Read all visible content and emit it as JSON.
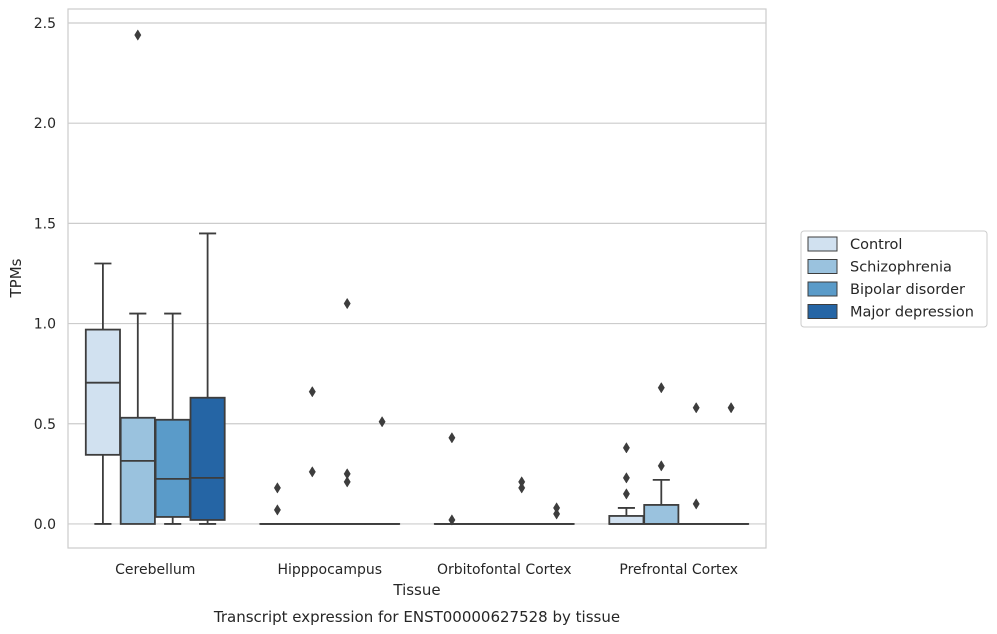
{
  "chart_data": {
    "type": "boxplot",
    "title": "Transcript expression for ENST00000627528 by tissue",
    "xlabel": "Tissue",
    "ylabel": "TPMs",
    "ylim": [
      -0.12,
      2.57
    ],
    "yticks": [
      "0.0",
      "0.5",
      "1.0",
      "1.5",
      "2.0",
      "2.5"
    ],
    "ytick_values": [
      0,
      0.5,
      1.0,
      1.5,
      2.0,
      2.5
    ],
    "grid": true,
    "legend_position": "right",
    "categories": [
      "Cerebellum",
      "Hipppocampus",
      "Orbitofontal Cortex",
      "Prefrontal Cortex"
    ],
    "series": [
      {
        "name": "Control",
        "color": "#d1e1f0",
        "boxes": [
          {
            "q1": 0.345,
            "median": 0.705,
            "q3": 0.97,
            "whislo": 0.0,
            "whishi": 1.3,
            "fliers": []
          },
          {
            "q1": 0.0,
            "median": 0.0,
            "q3": 0.0,
            "whislo": 0.0,
            "whishi": 0.0,
            "fliers": [
              0.07,
              0.18
            ]
          },
          {
            "q1": 0.0,
            "median": 0.0,
            "q3": 0.0,
            "whislo": 0.0,
            "whishi": 0.0,
            "fliers": [
              0.02,
              0.43
            ]
          },
          {
            "q1": 0.0,
            "median": 0.0,
            "q3": 0.04,
            "whislo": 0.0,
            "whishi": 0.08,
            "fliers": [
              0.15,
              0.23,
              0.38
            ]
          }
        ]
      },
      {
        "name": "Schizophrenia",
        "color": "#9ac2de",
        "boxes": [
          {
            "q1": 0.0,
            "median": 0.315,
            "q3": 0.53,
            "whislo": 0.0,
            "whishi": 1.05,
            "fliers": [
              2.44
            ]
          },
          {
            "q1": 0.0,
            "median": 0.0,
            "q3": 0.0,
            "whislo": 0.0,
            "whishi": 0.0,
            "fliers": [
              0.26,
              0.66
            ]
          },
          {
            "q1": 0.0,
            "median": 0.0,
            "q3": 0.0,
            "whislo": 0.0,
            "whishi": 0.0,
            "fliers": []
          },
          {
            "q1": 0.0,
            "median": 0.0,
            "q3": 0.095,
            "whislo": 0.0,
            "whishi": 0.22,
            "fliers": [
              0.29,
              0.68
            ]
          }
        ]
      },
      {
        "name": "Bipolar disorder",
        "color": "#5a9bc9",
        "boxes": [
          {
            "q1": 0.035,
            "median": 0.225,
            "q3": 0.52,
            "whislo": 0.0,
            "whishi": 1.05,
            "fliers": []
          },
          {
            "q1": 0.0,
            "median": 0.0,
            "q3": 0.0,
            "whislo": 0.0,
            "whishi": 0.0,
            "fliers": [
              0.21,
              0.25,
              1.1
            ]
          },
          {
            "q1": 0.0,
            "median": 0.0,
            "q3": 0.0,
            "whislo": 0.0,
            "whishi": 0.0,
            "fliers": [
              0.18,
              0.21
            ]
          },
          {
            "q1": 0.0,
            "median": 0.0,
            "q3": 0.0,
            "whislo": 0.0,
            "whishi": 0.0,
            "fliers": [
              0.1,
              0.58
            ]
          }
        ]
      },
      {
        "name": "Major depression",
        "color": "#2565a5",
        "boxes": [
          {
            "q1": 0.02,
            "median": 0.23,
            "q3": 0.63,
            "whislo": 0.0,
            "whishi": 1.45,
            "fliers": []
          },
          {
            "q1": 0.0,
            "median": 0.0,
            "q3": 0.0,
            "whislo": 0.0,
            "whishi": 0.0,
            "fliers": [
              0.51
            ]
          },
          {
            "q1": 0.0,
            "median": 0.0,
            "q3": 0.0,
            "whislo": 0.0,
            "whishi": 0.0,
            "fliers": [
              0.05,
              0.08
            ]
          },
          {
            "q1": 0.0,
            "median": 0.0,
            "q3": 0.0,
            "whislo": 0.0,
            "whishi": 0.0,
            "fliers": [
              0.58
            ]
          }
        ]
      }
    ]
  },
  "colors": {
    "grid": "#cccccc",
    "frame": "#cccccc",
    "line": "#3d3d3d",
    "text": "#262626"
  }
}
